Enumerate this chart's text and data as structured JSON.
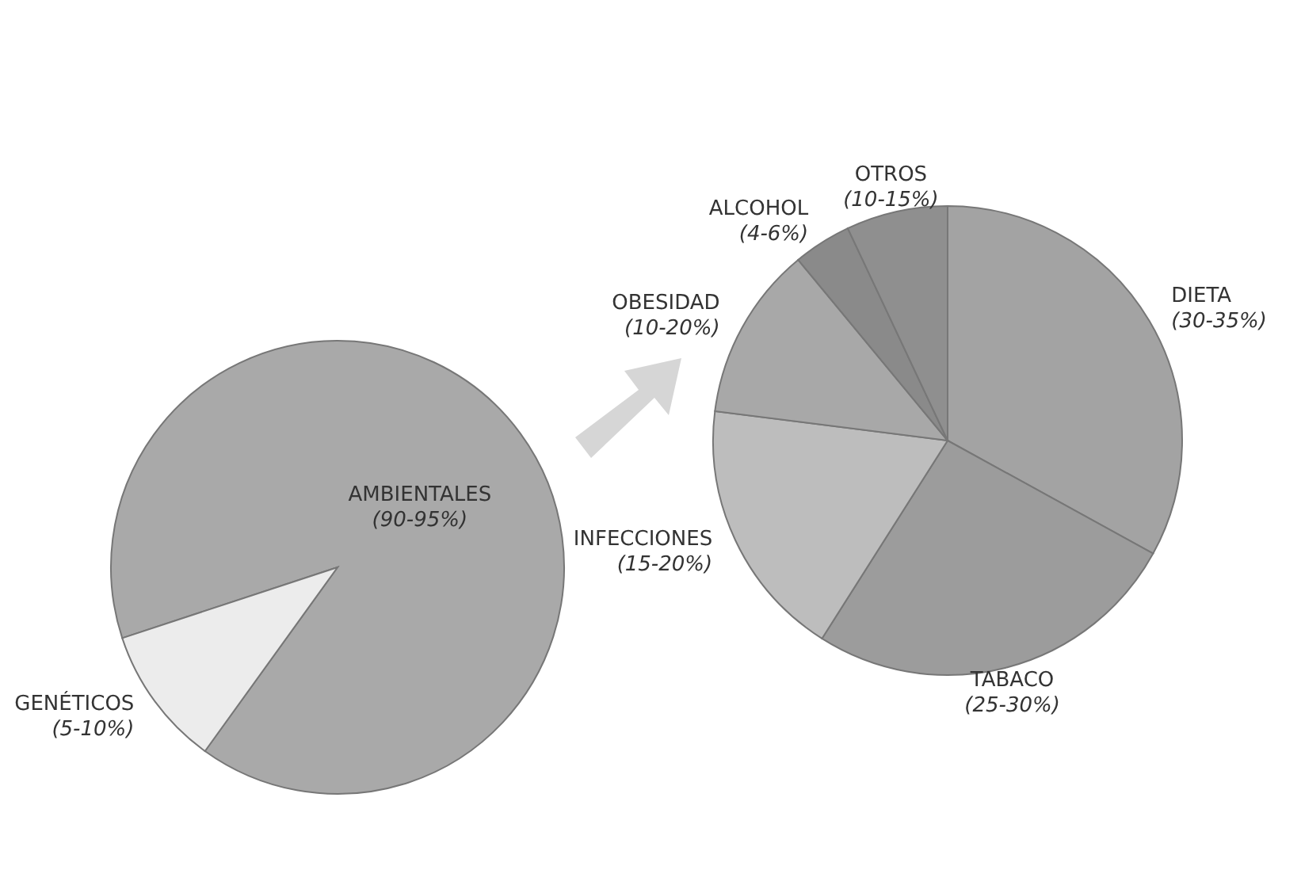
{
  "chart_data": [
    {
      "type": "pie",
      "categories": [
        "AMBIENTALES",
        "GENÉTICOS"
      ],
      "values": [
        90,
        10
      ],
      "colors": [
        "#a9a9a9",
        "#ececec"
      ],
      "annotations": [
        {
          "text": "(90-95%)",
          "x": "AMBIENTALES"
        },
        {
          "text": "(5-10%)",
          "x": "GENÉTICOS"
        }
      ]
    },
    {
      "type": "pie",
      "categories": [
        "DIETA",
        "TABACO",
        "INFECCIONES",
        "OBESIDAD",
        "ALCOHOL",
        "OTROS"
      ],
      "values": [
        33,
        26,
        18,
        12,
        4,
        7
      ],
      "colors": [
        "#a3a3a3",
        "#9c9c9c",
        "#bdbdbd",
        "#a8a8a8",
        "#8a8a8a",
        "#8f8f8f"
      ],
      "annotations": [
        {
          "text": "(30-35%)",
          "x": "DIETA"
        },
        {
          "text": "(25-30%)",
          "x": "TABACO"
        },
        {
          "text": "(15-20%)",
          "x": "INFECCIONES"
        },
        {
          "text": "(10-20%)",
          "x": "OBESIDAD"
        },
        {
          "text": "(4-6%)",
          "x": "ALCOHOL"
        },
        {
          "text": "(10-15%)",
          "x": "OTROS"
        }
      ]
    }
  ]
}
